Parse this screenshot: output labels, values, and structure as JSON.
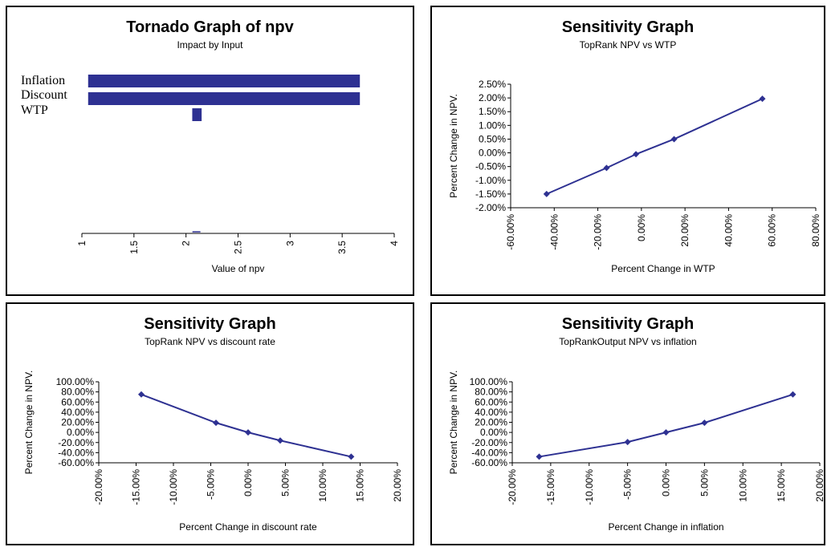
{
  "colors": {
    "series": "#2e3192",
    "axis": "#000000",
    "border": "#000000"
  },
  "chart_data": [
    {
      "type": "bar",
      "orientation": "horizontal",
      "title": "Tornado Graph of npv",
      "subtitle": "Impact by Input",
      "xlabel": "Value of npv",
      "xlim": [
        1,
        4
      ],
      "xticks": [
        "1",
        "1.5",
        "2",
        "2.5",
        "3",
        "3.5",
        "4"
      ],
      "xtick_values": [
        1,
        1.5,
        2,
        2.5,
        3,
        3.5,
        4
      ],
      "categories": [
        "Inflation",
        "Discount",
        "WTP"
      ],
      "ranges": [
        [
          1.06,
          3.67
        ],
        [
          1.06,
          3.67
        ],
        [
          2.06,
          2.15
        ]
      ],
      "baseline": 2.1
    },
    {
      "type": "line",
      "title": "Sensitivity Graph",
      "subtitle": "TopRank NPV vs WTP",
      "xlabel": "Percent Change in WTP",
      "ylabel": "Percent Change in NPV.",
      "xlim": [
        -60,
        80
      ],
      "ylim": [
        -2,
        2.5
      ],
      "xticks": [
        "-60.00%",
        "-40.00%",
        "-20.00%",
        "0.00%",
        "20.00%",
        "40.00%",
        "60.00%",
        "80.00%"
      ],
      "xtick_values": [
        -60,
        -40,
        -20,
        0,
        20,
        40,
        60,
        80
      ],
      "yticks": [
        "2.50%",
        "2.00%",
        "1.50%",
        "1.00%",
        "0.50%",
        "0.00%",
        "-0.50%",
        "-1.00%",
        "-1.50%",
        "-2.00%"
      ],
      "ytick_values": [
        2.5,
        2,
        1.5,
        1,
        0.5,
        0,
        -0.5,
        -1,
        -1.5,
        -2
      ],
      "x": [
        -43.5,
        -16,
        -2.5,
        15,
        55.5
      ],
      "y": [
        -1.5,
        -0.55,
        -0.05,
        0.5,
        1.97
      ]
    },
    {
      "type": "line",
      "title": "Sensitivity Graph",
      "subtitle": "TopRank NPV vs discount rate",
      "xlabel": "Percent Change in discount rate",
      "ylabel": "Percent Change in NPV.",
      "xlim": [
        -20,
        20
      ],
      "ylim": [
        -60,
        100
      ],
      "xticks": [
        "-20.00%",
        "-15.00%",
        "-10.00%",
        "-5.00%",
        "0.00%",
        "5.00%",
        "10.00%",
        "15.00%",
        "20.00%"
      ],
      "xtick_values": [
        -20,
        -15,
        -10,
        -5,
        0,
        5,
        10,
        15,
        20
      ],
      "yticks": [
        "100.00%",
        "80.00%",
        "60.00%",
        "40.00%",
        "20.00%",
        "0.00%",
        "-20.00%",
        "-40.00%",
        "-60.00%"
      ],
      "ytick_values": [
        100,
        80,
        60,
        40,
        20,
        0,
        -20,
        -40,
        -60
      ],
      "x": [
        -14.3,
        -4.3,
        0,
        4.3,
        13.8
      ],
      "y": [
        75,
        19,
        0,
        -16,
        -48
      ]
    },
    {
      "type": "line",
      "title": "Sensitivity Graph",
      "subtitle": "TopRankOutput NPV vs inflation",
      "xlabel": "Percent Change in inflation",
      "ylabel": "Percent Change in NPV.",
      "xlim": [
        -20,
        20
      ],
      "ylim": [
        -60,
        100
      ],
      "xticks": [
        "-20.00%",
        "-15.00%",
        "-10.00%",
        "-5.00%",
        "0.00%",
        "5.00%",
        "10.00%",
        "15.00%",
        "20.00%"
      ],
      "xtick_values": [
        -20,
        -15,
        -10,
        -5,
        0,
        5,
        10,
        15,
        20
      ],
      "yticks": [
        "100.00%",
        "80.00%",
        "60.00%",
        "40.00%",
        "20.00%",
        "0.00%",
        "-20.00%",
        "-40.00%",
        "-60.00%"
      ],
      "ytick_values": [
        100,
        80,
        60,
        40,
        20,
        0,
        -20,
        -40,
        -60
      ],
      "x": [
        -16.5,
        -5,
        0,
        5,
        16.5
      ],
      "y": [
        -48,
        -19,
        0,
        19,
        75
      ]
    }
  ]
}
